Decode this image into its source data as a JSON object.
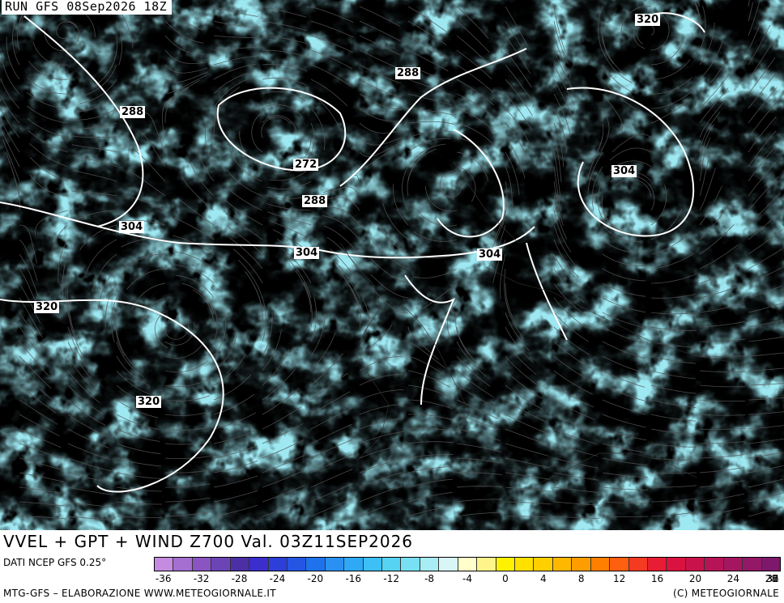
{
  "header": {
    "run_label": "RUN GFS 08Sep2026 18Z"
  },
  "map": {
    "contour_labels": [
      "320",
      "288",
      "288",
      "272",
      "304",
      "288",
      "304",
      "304",
      "304",
      "320",
      "320"
    ],
    "field_colors": [
      "#9b59b6",
      "#3a3acc",
      "#2f7fe0",
      "#3fc6e8",
      "#9ee8f2",
      "#fff200",
      "#ffd21a",
      "#ff7a1a",
      "#e3124a",
      "#a41d6e"
    ]
  },
  "footer": {
    "title": "VVEL + GPT + WIND Z700 Val. 03Z11SEP2026",
    "source": "DATI NCEP GFS 0.25°",
    "credit_left": "MTG-GFS – ELABORAZIONE WWW.METEOGIORNALE.IT",
    "credit_right": "(C) METEOGIORNALE"
  },
  "colorbar": {
    "colors": [
      "#c58be0",
      "#a46fd0",
      "#8a55c2",
      "#6b45b5",
      "#4c2fa5",
      "#3b2ecc",
      "#2c3fd8",
      "#2556e3",
      "#1e73ec",
      "#2a91f2",
      "#2fa8f5",
      "#3cc0f5",
      "#56d2f2",
      "#78e0f2",
      "#a8ecf4",
      "#d8f6f8",
      "#ffffcc",
      "#fff48a",
      "#fff200",
      "#ffe100",
      "#ffcf00",
      "#ffb800",
      "#ff9d00",
      "#ff7f00",
      "#ff6010",
      "#f53a22",
      "#e81c34",
      "#d9123f",
      "#c8124c",
      "#b61456",
      "#a4165f",
      "#931866",
      "#7e186b"
    ],
    "tick_labels": [
      "-36",
      "-32",
      "-28",
      "-24",
      "-20",
      "-16",
      "-12",
      "-8",
      "-4",
      "0",
      "4",
      "8",
      "12",
      "16",
      "20",
      "24",
      "28",
      "32",
      "36"
    ]
  }
}
